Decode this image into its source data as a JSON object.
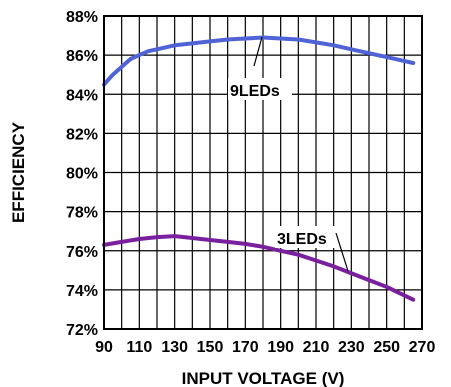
{
  "chart_data": {
    "type": "line",
    "xlabel": "INPUT VOLTAGE (V)",
    "ylabel": "EFFICIENCY",
    "xlim": [
      90,
      270
    ],
    "ylim": [
      72,
      88
    ],
    "x_ticks": [
      90,
      110,
      130,
      150,
      170,
      190,
      210,
      230,
      250,
      270
    ],
    "x_tick_labels": [
      "90",
      "110",
      "130",
      "150",
      "170",
      "190",
      "210",
      "230",
      "250",
      "270"
    ],
    "y_ticks": [
      72,
      74,
      76,
      78,
      80,
      82,
      84,
      86,
      88
    ],
    "y_tick_labels": [
      "72%",
      "74%",
      "76%",
      "78%",
      "80%",
      "82%",
      "84%",
      "86%",
      "88%"
    ],
    "grid": true,
    "series": [
      {
        "name": "9LEDs",
        "color": "#4f63d6",
        "x": [
          90,
          95,
          100,
          105,
          110,
          115,
          120,
          130,
          140,
          150,
          160,
          170,
          180,
          190,
          200,
          210,
          220,
          230,
          240,
          250,
          265
        ],
        "y": [
          84.5,
          85.0,
          85.4,
          85.8,
          86.0,
          86.2,
          86.3,
          86.5,
          86.6,
          86.7,
          86.8,
          86.85,
          86.9,
          86.85,
          86.8,
          86.65,
          86.5,
          86.3,
          86.1,
          85.9,
          85.6
        ]
      },
      {
        "name": "3LEDs",
        "color": "#7a1f9e",
        "x": [
          90,
          100,
          110,
          120,
          130,
          140,
          150,
          160,
          170,
          180,
          190,
          200,
          210,
          220,
          230,
          240,
          250,
          265
        ],
        "y": [
          76.3,
          76.45,
          76.6,
          76.7,
          76.75,
          76.65,
          76.55,
          76.45,
          76.35,
          76.2,
          76.0,
          75.8,
          75.5,
          75.2,
          74.85,
          74.5,
          74.15,
          73.5
        ]
      }
    ]
  }
}
